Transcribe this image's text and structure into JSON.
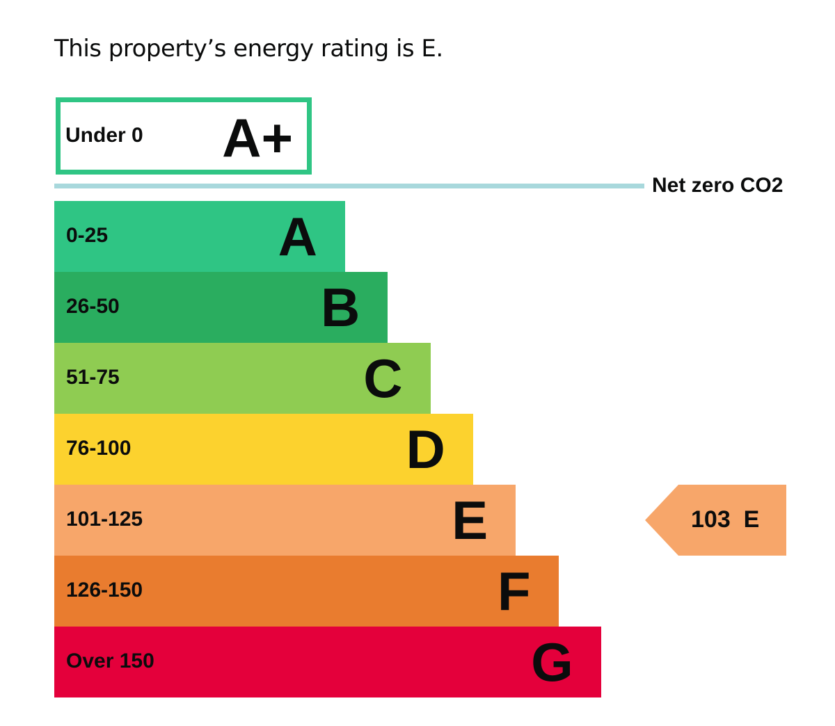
{
  "heading": "This property’s energy rating is E.",
  "chart_data": {
    "type": "bar",
    "title": "",
    "top_band": {
      "range": "Under 0",
      "letter": "A+",
      "color": "#2fc584"
    },
    "net_zero_label": "Net zero CO2",
    "net_zero_line_color": "#a8d8dc",
    "bands": [
      {
        "range": "0-25",
        "letter": "A",
        "color": "#2fc584"
      },
      {
        "range": "26-50",
        "letter": "B",
        "color": "#2aad5f"
      },
      {
        "range": "51-75",
        "letter": "C",
        "color": "#8fcc52"
      },
      {
        "range": "76-100",
        "letter": "D",
        "color": "#fcd22e"
      },
      {
        "range": "101-125",
        "letter": "E",
        "color": "#f7a66a"
      },
      {
        "range": "126-150",
        "letter": "F",
        "color": "#e97c2f"
      },
      {
        "range": "Over 150",
        "letter": "G",
        "color": "#e4003b"
      }
    ],
    "current": {
      "score": "103",
      "letter": "E",
      "label": "103  E",
      "band_index": 4,
      "color": "#f7a66a"
    }
  }
}
